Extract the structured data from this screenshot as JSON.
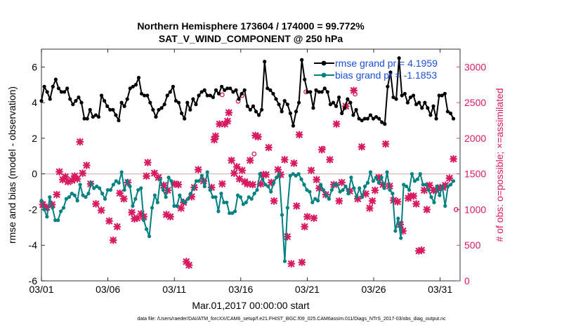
{
  "chart_data": {
    "type": "line",
    "title": "Northern Hemisphere 173604 / 174000 = 99.772%",
    "subtitle": "SAT_V_WIND_COMPONENT @ 250 hPa",
    "xlabel": "Mar.01,2017 00:00:00 start",
    "ylabel": "rmse and bias (model - observation)",
    "y2label": "# of obs: o=possible; ×=assimilated",
    "xlim": [
      0,
      31.5
    ],
    "ylim": [
      -6,
      7
    ],
    "y2lim": [
      0,
      3250
    ],
    "xticks": [
      0,
      5,
      10,
      15,
      20,
      25,
      30
    ],
    "xticklabels": [
      "03/01",
      "03/06",
      "03/11",
      "03/16",
      "03/21",
      "03/26",
      "03/31"
    ],
    "yticks": [
      -6,
      -4,
      -2,
      0,
      2,
      4,
      6
    ],
    "y2ticks": [
      0,
      500,
      1000,
      1500,
      2000,
      2500,
      3000
    ],
    "colors": {
      "rmse": "#000000",
      "bias": "#008080",
      "obs": "#d81b60",
      "zero": "#c8a8a8",
      "legendText": "#1a4fd6"
    },
    "series": [
      {
        "name": "rmse grand pr = 4.1959",
        "axis": "left",
        "marker": "circle",
        "values": [
          4.1,
          4.9,
          4.6,
          4.2,
          4.9,
          5.3,
          4.8,
          4.6,
          4.6,
          4.8,
          4.2,
          3.9,
          4.1,
          4.3,
          4.0,
          3.1,
          3.1,
          3.6,
          3.2,
          3.3,
          3.2,
          4.4,
          4.1,
          3.8,
          3.6,
          3.6,
          3.3,
          3.0,
          4.0,
          3.8,
          4.2,
          4.8,
          4.9,
          5.0,
          5.4,
          4.5,
          4.4,
          4.4,
          4.0,
          3.6,
          3.2,
          3.6,
          3.7,
          3.9,
          4.4,
          4.6,
          4.9,
          4.1,
          4.0,
          3.4,
          3.1,
          4.0,
          3.6,
          4.2,
          3.9,
          4.4,
          4.6,
          4.7,
          4.4,
          4.4,
          4.3,
          4.7,
          4.5,
          4.9,
          4.7,
          4.8,
          4.8,
          4.6,
          4.7,
          4.2,
          4.5,
          4.7,
          3.8,
          3.6,
          3.8,
          3.5,
          3.3,
          3.6,
          6.3,
          4.8,
          4.7,
          4.5,
          4.2,
          3.9,
          3.5,
          4.1,
          3.9,
          3.4,
          2.7,
          3.5,
          4.0,
          6.4,
          5.3,
          4.6,
          4.6,
          3.7,
          4.7,
          4.6,
          4.6,
          4.8,
          4.6,
          3.9,
          4.0,
          3.8,
          4.3,
          3.4,
          3.7,
          4.2,
          4.0,
          3.3,
          3.6,
          3.1,
          3.0,
          3.1,
          3.1,
          3.3,
          3.1,
          3.2,
          3.1,
          2.9,
          2.8,
          4.9,
          5.7,
          4.3,
          4.2,
          6.5,
          4.4,
          4.5,
          4.0,
          4.3,
          4.4,
          3.9,
          4.0,
          3.7,
          4.0,
          3.7,
          3.3,
          3.8,
          3.1,
          4.4,
          4.4,
          4.5,
          3.5,
          3.4,
          3.1
        ]
      },
      {
        "name": "bias grand pr = -1.1853",
        "axis": "left",
        "marker": "circle",
        "values": [
          -1.5,
          -2.0,
          -2.4,
          -1.3,
          -1.9,
          -2.6,
          -2.6,
          -2.1,
          -1.9,
          -1.4,
          -1.3,
          -1.1,
          -1.2,
          -1.5,
          -0.6,
          -1.2,
          -1.3,
          -1.1,
          -0.5,
          -0.8,
          -0.7,
          -0.8,
          -1.1,
          -1.4,
          -0.9,
          -0.9,
          -0.6,
          -0.4,
          -0.5,
          0.1,
          -0.9,
          -0.4,
          -0.7,
          -1.8,
          -1.4,
          -0.9,
          -0.8,
          -2.6,
          -3.1,
          -3.5,
          -1.9,
          -1.2,
          -1.6,
          -0.3,
          -0.9,
          -1.3,
          -0.2,
          -0.4,
          -1.8,
          -1.8,
          -1.2,
          -1.5,
          -1.6,
          -1.4,
          -1.1,
          -0.8,
          -0.4,
          -0.4,
          -0.1,
          -0.7,
          0.1,
          -0.9,
          -1.3,
          -1.3,
          -2.1,
          -1.1,
          -1.6,
          -1.6,
          -2.2,
          -2.2,
          -2.1,
          -1.2,
          -1.3,
          -1.7,
          -1.6,
          -1.3,
          -1.4,
          -1.1,
          -0.9,
          0.0,
          -0.3,
          -0.6,
          -0.7,
          -1.0,
          -0.5,
          -0.2,
          0.0,
          -2.3,
          -4.9,
          -1.9,
          -0.1,
          0.0,
          -0.1,
          0.0,
          -0.3,
          -0.6,
          -0.9,
          -1.0,
          -1.6,
          -1.4,
          -1.5,
          -0.6,
          -0.9,
          -1.2,
          -1.4,
          -0.9,
          -0.6,
          -0.6,
          -1.0,
          -0.9,
          -0.7,
          -1.1,
          -0.2,
          -0.8,
          -1.3,
          -0.8,
          -1.3,
          -0.7,
          -0.5,
          0.1,
          -0.4,
          -0.2,
          -0.5,
          -0.2,
          -0.8,
          0.1,
          -0.9,
          -1.1,
          -3.2,
          -2.5,
          -3.6,
          -0.6,
          -0.7,
          -0.9,
          0.0,
          -0.4,
          -0.3,
          0.0,
          -0.6,
          -0.6,
          -0.9,
          -1.3,
          -1.6,
          -0.7,
          -1.2,
          -0.7,
          -1.8,
          -0.7,
          -0.6,
          -0.4
        ]
      }
    ],
    "obs_assimilated": {
      "name": "assimilated",
      "axis": "right",
      "marker": "x",
      "points": [
        [
          0.1,
          1070
        ],
        [
          0.4,
          1030
        ],
        [
          0.8,
          1070
        ],
        [
          1.15,
          1210
        ],
        [
          1.35,
          1530
        ],
        [
          1.6,
          1420
        ],
        [
          1.8,
          1460
        ],
        [
          2.0,
          1390
        ],
        [
          2.3,
          1410
        ],
        [
          2.5,
          1470
        ],
        [
          2.7,
          1430
        ],
        [
          2.9,
          1950
        ],
        [
          3.1,
          1510
        ],
        [
          3.4,
          1620
        ],
        [
          3.7,
          1360
        ],
        [
          4.1,
          1080
        ],
        [
          4.5,
          990
        ],
        [
          5.1,
          840
        ],
        [
          5.4,
          570
        ],
        [
          5.7,
          760
        ],
        [
          5.9,
          1230
        ],
        [
          6.2,
          1150
        ],
        [
          6.5,
          1380
        ],
        [
          6.8,
          960
        ],
        [
          7.0,
          870
        ],
        [
          7.2,
          880
        ],
        [
          7.5,
          940
        ],
        [
          7.7,
          900
        ],
        [
          7.9,
          1470
        ],
        [
          8.0,
          1660
        ],
        [
          8.5,
          1510
        ],
        [
          8.8,
          1450
        ],
        [
          9.2,
          1340
        ],
        [
          9.4,
          930
        ],
        [
          9.5,
          1270
        ],
        [
          9.7,
          900
        ],
        [
          10.0,
          1360
        ],
        [
          10.3,
          1350
        ],
        [
          10.5,
          1020
        ],
        [
          10.7,
          1100
        ],
        [
          10.9,
          270
        ],
        [
          11.1,
          220
        ],
        [
          11.3,
          1180
        ],
        [
          11.5,
          1310
        ],
        [
          11.8,
          1560
        ],
        [
          12.2,
          1400
        ],
        [
          12.8,
          1310
        ],
        [
          13.0,
          1980
        ],
        [
          13.1,
          2030
        ],
        [
          13.4,
          2200
        ],
        [
          13.6,
          1360
        ],
        [
          13.8,
          2200
        ],
        [
          14.0,
          2240
        ],
        [
          14.1,
          2360
        ],
        [
          14.3,
          1690
        ],
        [
          14.5,
          1510
        ],
        [
          14.7,
          1600
        ],
        [
          14.9,
          1430
        ],
        [
          15.1,
          1550
        ],
        [
          15.3,
          1390
        ],
        [
          15.5,
          1360
        ],
        [
          15.7,
          1690
        ],
        [
          15.9,
          1350
        ],
        [
          16.1,
          2040
        ],
        [
          16.3,
          2020
        ],
        [
          16.5,
          1360
        ],
        [
          16.7,
          1490
        ],
        [
          16.9,
          1490
        ],
        [
          17.1,
          1870
        ],
        [
          17.3,
          1380
        ],
        [
          17.5,
          1120
        ],
        [
          17.8,
          1560
        ],
        [
          18.0,
          1490
        ],
        [
          18.3,
          1700
        ],
        [
          18.5,
          620
        ],
        [
          18.8,
          240
        ],
        [
          19.0,
          1650
        ],
        [
          19.2,
          1050
        ],
        [
          19.4,
          2050
        ],
        [
          19.6,
          260
        ],
        [
          19.8,
          760
        ],
        [
          20.0,
          900
        ],
        [
          20.3,
          1550
        ],
        [
          20.5,
          880
        ],
        [
          20.7,
          1420
        ],
        [
          20.9,
          1300
        ],
        [
          21.1,
          1840
        ],
        [
          21.4,
          1210
        ],
        [
          21.7,
          1700
        ],
        [
          22.0,
          1350
        ],
        [
          22.2,
          2200
        ],
        [
          22.4,
          1120
        ],
        [
          22.6,
          1380
        ],
        [
          22.9,
          2450
        ],
        [
          23.2,
          1260
        ],
        [
          23.5,
          2670
        ],
        [
          23.8,
          1150
        ],
        [
          24.1,
          1880
        ],
        [
          24.4,
          1220
        ],
        [
          24.7,
          1020
        ],
        [
          24.9,
          1120
        ],
        [
          25.1,
          1270
        ],
        [
          25.4,
          1450
        ],
        [
          25.7,
          1350
        ],
        [
          25.9,
          1920
        ],
        [
          26.2,
          1330
        ],
        [
          26.5,
          1130
        ],
        [
          26.8,
          1110
        ],
        [
          27.0,
          790
        ],
        [
          27.2,
          700
        ],
        [
          27.6,
          1160
        ],
        [
          27.8,
          1190
        ],
        [
          28.0,
          1190
        ],
        [
          28.2,
          1080
        ],
        [
          28.4,
          420
        ],
        [
          28.6,
          430
        ],
        [
          28.8,
          1270
        ],
        [
          29.0,
          1000
        ],
        [
          29.2,
          1340
        ],
        [
          29.5,
          1270
        ],
        [
          29.7,
          1270
        ],
        [
          30.0,
          1310
        ],
        [
          30.2,
          1310
        ],
        [
          30.4,
          1340
        ],
        [
          30.7,
          1440
        ],
        [
          31.0,
          1710
        ]
      ]
    },
    "obs_possible": {
      "name": "possible",
      "axis": "right",
      "marker": "o",
      "points": [
        [
          0.1,
          1090
        ],
        [
          13.6,
          2610
        ],
        [
          14.8,
          2520
        ],
        [
          15.1,
          2600
        ],
        [
          16.0,
          1780
        ],
        [
          19.9,
          2650
        ],
        [
          21.2,
          1860
        ],
        [
          23.6,
          2620
        ],
        [
          31.2,
          1000
        ]
      ]
    },
    "footer": "data file: /Users/raeder/DAI/ATM_forcXX/CAM6_setup/f.e21.FHIST_BGC.f09_025.CAM6assim.011/Diags_NTrS_2017-03/obs_diag_output.nc"
  }
}
